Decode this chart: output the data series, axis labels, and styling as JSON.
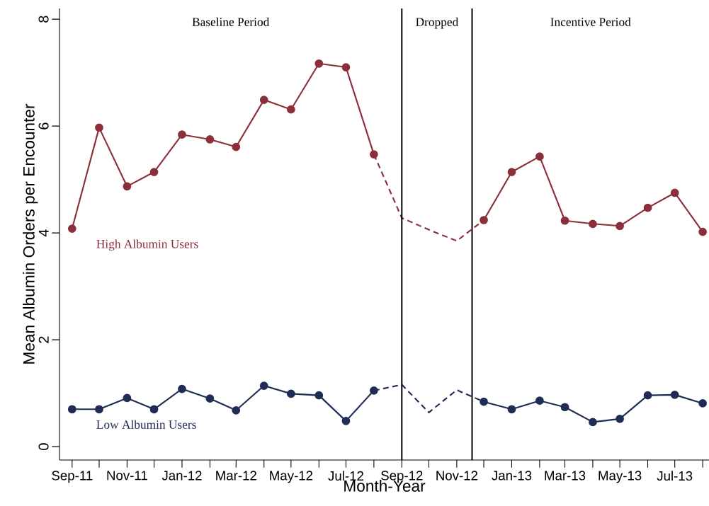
{
  "chart_data": {
    "type": "line",
    "xlabel": "Month-Year",
    "ylabel": "Mean Albumin Orders per Encounter",
    "x": [
      "2011-09",
      "2011-10",
      "2011-11",
      "2011-12",
      "2012-01",
      "2012-02",
      "2012-03",
      "2012-04",
      "2012-05",
      "2012-06",
      "2012-07",
      "2012-08",
      "2012-09",
      "2012-10",
      "2012-11",
      "2012-12",
      "2013-01",
      "2013-02",
      "2013-03",
      "2013-04",
      "2013-05",
      "2013-06",
      "2013-07",
      "2013-08"
    ],
    "series": [
      {
        "name": "High Albumin Users",
        "color": "#8b2f3a",
        "line_style": "solid",
        "marker": "circle",
        "values": [
          4.08,
          5.97,
          4.87,
          5.14,
          5.84,
          5.75,
          5.61,
          6.49,
          6.31,
          7.17,
          7.1,
          5.47,
          null,
          null,
          null,
          4.24,
          5.14,
          5.43,
          4.23,
          4.17,
          4.13,
          4.47,
          4.75,
          4.02
        ]
      },
      {
        "color": "#8b2f3a",
        "line_style": "dashed",
        "marker": "none",
        "values": [
          null,
          null,
          null,
          null,
          null,
          null,
          null,
          null,
          null,
          null,
          null,
          5.47,
          4.28,
          4.06,
          3.85,
          4.24,
          null,
          null,
          null,
          null,
          null,
          null,
          null,
          null
        ]
      },
      {
        "name": "Low Albumin Users",
        "color": "#1f2d55",
        "line_style": "solid",
        "marker": "circle",
        "values": [
          0.7,
          0.7,
          0.91,
          0.7,
          1.08,
          0.9,
          0.68,
          1.14,
          0.99,
          0.96,
          0.48,
          1.05,
          null,
          null,
          null,
          0.84,
          0.7,
          0.86,
          0.74,
          0.46,
          0.52,
          0.96,
          0.97,
          0.81
        ]
      },
      {
        "color": "#1f2d55",
        "line_style": "dashed",
        "marker": "none",
        "values": [
          null,
          null,
          null,
          null,
          null,
          null,
          null,
          null,
          null,
          null,
          null,
          1.05,
          1.16,
          0.64,
          1.06,
          0.84,
          null,
          null,
          null,
          null,
          null,
          null,
          null,
          null
        ]
      }
    ],
    "xlim": [
      "2011-08-18",
      "2013-08-08"
    ],
    "xticks": [
      {
        "value": "2011-09",
        "label": "Sep-11"
      },
      {
        "value": "2011-10",
        "label": null
      },
      {
        "value": "2011-11",
        "label": "Nov-11"
      },
      {
        "value": "2011-12",
        "label": null
      },
      {
        "value": "2012-01",
        "label": "Jan-12"
      },
      {
        "value": "2012-02",
        "label": null
      },
      {
        "value": "2012-03",
        "label": "Mar-12"
      },
      {
        "value": "2012-04",
        "label": null
      },
      {
        "value": "2012-05",
        "label": "May-12"
      },
      {
        "value": "2012-06",
        "label": null
      },
      {
        "value": "2012-07",
        "label": "Jul-12"
      },
      {
        "value": "2012-08",
        "label": null
      },
      {
        "value": "2012-09",
        "label": "Sep-12"
      },
      {
        "value": "2012-10",
        "label": null
      },
      {
        "value": "2012-11",
        "label": "Nov-12"
      },
      {
        "value": "2012-12",
        "label": null
      },
      {
        "value": "2013-01",
        "label": "Jan-13"
      },
      {
        "value": "2013-02",
        "label": null
      },
      {
        "value": "2013-03",
        "label": "Mar-13"
      },
      {
        "value": "2013-04",
        "label": null
      },
      {
        "value": "2013-05",
        "label": "May-13"
      },
      {
        "value": "2013-06",
        "label": null
      },
      {
        "value": "2013-07",
        "label": "Jul-13"
      },
      {
        "value": "2013-08",
        "label": null
      }
    ],
    "ylim": [
      -0.25,
      8.2
    ],
    "yticks": [
      0,
      2,
      4,
      6,
      8
    ],
    "ref_lines": [
      {
        "axis": "x",
        "value": "2012-09-01",
        "color": "#000000"
      },
      {
        "axis": "x",
        "value": "2012-11-18",
        "color": "#000000"
      }
    ],
    "annotations": [
      "Baseline Period",
      "Dropped",
      "Incentive Period"
    ],
    "grid": false,
    "legend": false
  }
}
